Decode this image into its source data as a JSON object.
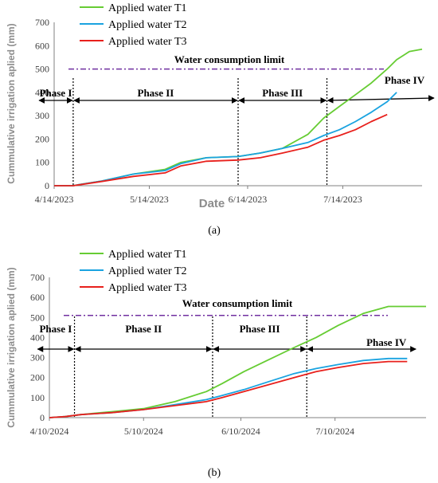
{
  "chart_data": [
    {
      "id": "a",
      "type": "line",
      "caption": "(a)",
      "xlabel": "Date",
      "ylabel": "Cummulative irrigation aplied (mm)",
      "x_tick_labels": [
        "4/14/2023",
        "5/14/2023",
        "6/14/2023",
        "7/14/2023"
      ],
      "x_tick_days": [
        0,
        30,
        61,
        91
      ],
      "xlim": [
        0,
        116
      ],
      "ylim": [
        0,
        700
      ],
      "y_ticks": [
        0,
        100,
        200,
        300,
        400,
        500,
        600,
        700
      ],
      "limit_label": "Water consumption limit",
      "limit_value": 500,
      "phases": [
        {
          "label": "Phase I",
          "from": -5,
          "to": 6
        },
        {
          "label": "Phase II",
          "from": 6,
          "to": 58
        },
        {
          "label": "Phase III",
          "from": 58,
          "to": 86
        },
        {
          "label": "Phase IV",
          "from": 86,
          "to": 121
        }
      ],
      "series": [
        {
          "name": "Applied water T1",
          "color": "#66cc33",
          "x": [
            0,
            6,
            8,
            15,
            25,
            35,
            40,
            48,
            58,
            65,
            72,
            80,
            85,
            90,
            95,
            100,
            105,
            108,
            112,
            116
          ],
          "y": [
            0,
            0,
            5,
            20,
            50,
            70,
            100,
            120,
            125,
            140,
            160,
            220,
            290,
            340,
            390,
            440,
            500,
            540,
            575,
            585
          ]
        },
        {
          "name": "Applied water T2",
          "color": "#1aa3e0",
          "x": [
            0,
            6,
            8,
            15,
            25,
            35,
            40,
            48,
            58,
            65,
            72,
            80,
            85,
            90,
            95,
            100,
            105,
            108
          ],
          "y": [
            0,
            0,
            5,
            20,
            50,
            65,
            95,
            120,
            125,
            140,
            160,
            185,
            215,
            240,
            275,
            315,
            360,
            400
          ]
        },
        {
          "name": "Applied water T3",
          "color": "#e8201c",
          "x": [
            0,
            6,
            8,
            15,
            25,
            35,
            40,
            48,
            58,
            65,
            72,
            80,
            85,
            90,
            95,
            100,
            105
          ],
          "y": [
            0,
            0,
            4,
            18,
            40,
            55,
            85,
            105,
            110,
            120,
            140,
            165,
            195,
            215,
            240,
            275,
            305
          ]
        }
      ]
    },
    {
      "id": "b",
      "type": "line",
      "caption": "(b)",
      "xlabel": "",
      "ylabel": "Cummulative irrigation aplied (mm)",
      "x_tick_labels": [
        "4/10/2024",
        "5/10/2024",
        "6/10/2024",
        "7/10/2024"
      ],
      "x_tick_days": [
        0,
        30,
        61,
        91
      ],
      "xlim": [
        0,
        120
      ],
      "ylim": [
        0,
        700
      ],
      "y_ticks": [
        0,
        100,
        200,
        300,
        400,
        500,
        600,
        700
      ],
      "limit_label": "Water consumption limit",
      "limit_value": 510,
      "phases": [
        {
          "label": "Phase I",
          "from": -4,
          "to": 8
        },
        {
          "label": "Phase II",
          "from": 8,
          "to": 52
        },
        {
          "label": "Phase III",
          "from": 52,
          "to": 82
        },
        {
          "label": "Phase IV",
          "from": 82,
          "to": 117
        }
      ],
      "series": [
        {
          "name": "Applied water T1",
          "color": "#66cc33",
          "x": [
            0,
            5,
            10,
            20,
            30,
            40,
            50,
            55,
            62,
            70,
            78,
            85,
            92,
            100,
            108,
            120
          ],
          "y": [
            0,
            5,
            15,
            30,
            45,
            80,
            130,
            170,
            230,
            290,
            350,
            400,
            460,
            520,
            555,
            555
          ]
        },
        {
          "name": "Applied water T2",
          "color": "#1aa3e0",
          "x": [
            0,
            5,
            10,
            20,
            30,
            40,
            50,
            55,
            62,
            70,
            78,
            85,
            92,
            100,
            108,
            114
          ],
          "y": [
            0,
            5,
            15,
            25,
            40,
            65,
            90,
            110,
            140,
            180,
            220,
            245,
            265,
            285,
            295,
            295
          ]
        },
        {
          "name": "Applied water T3",
          "color": "#e8201c",
          "x": [
            0,
            5,
            10,
            20,
            30,
            40,
            50,
            55,
            62,
            70,
            78,
            85,
            92,
            100,
            108,
            114
          ],
          "y": [
            0,
            5,
            15,
            25,
            40,
            60,
            80,
            100,
            130,
            165,
            200,
            230,
            250,
            270,
            280,
            280
          ]
        }
      ]
    }
  ]
}
